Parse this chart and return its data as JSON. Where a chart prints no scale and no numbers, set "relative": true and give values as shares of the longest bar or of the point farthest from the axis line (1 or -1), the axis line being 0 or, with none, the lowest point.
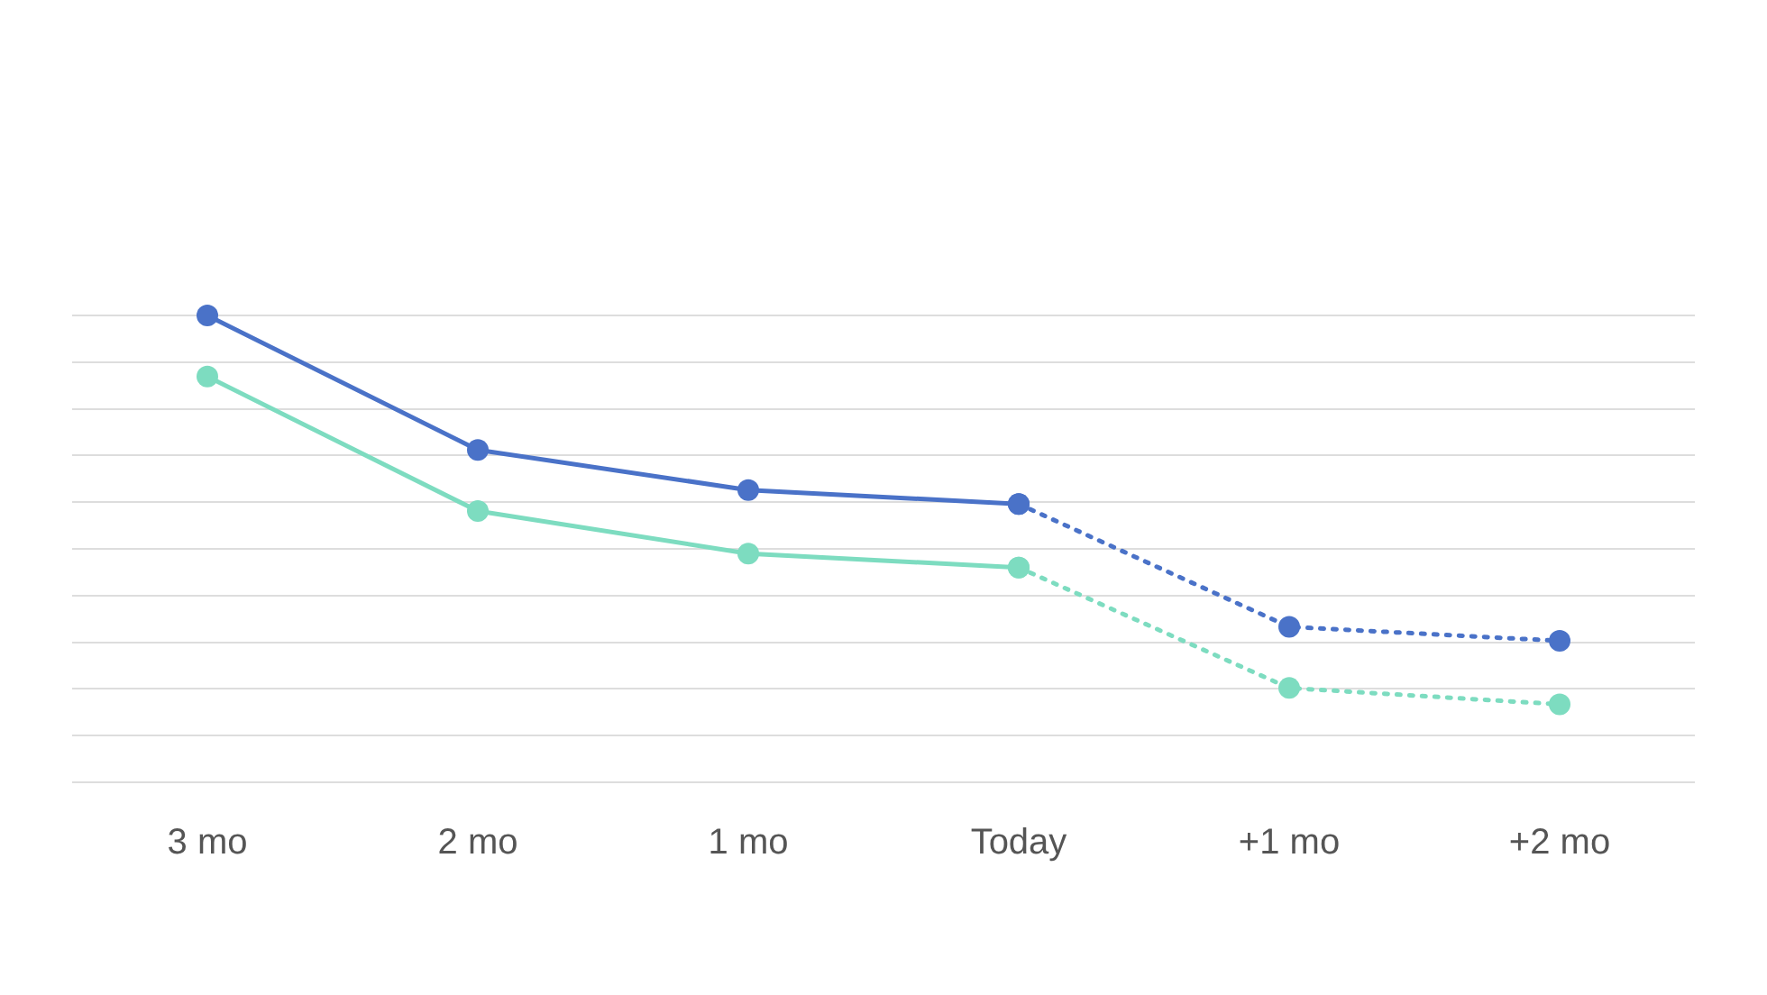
{
  "chart_data": {
    "type": "line",
    "relative": true,
    "categories": [
      "3 mo",
      "2 mo",
      "1 mo",
      "Today",
      "+1 mo",
      "+2 mo"
    ],
    "series": [
      {
        "color": "#4a72c8",
        "line_style": "solid",
        "values": [
          1,
          0.712,
          0.626,
          0.596,
          null,
          null
        ]
      },
      {
        "color": "#7ddcc0",
        "line_style": "solid",
        "values": [
          0.869,
          0.581,
          0.49,
          0.46,
          null,
          null
        ]
      },
      {
        "color": "#4a72c8",
        "line_style": "dotted",
        "values": [
          null,
          null,
          null,
          0.596,
          0.333,
          0.303
        ]
      },
      {
        "color": "#7ddcc0",
        "line_style": "dotted",
        "values": [
          null,
          null,
          null,
          0.46,
          0.202,
          0.167
        ]
      }
    ],
    "marker": "circle",
    "grid": "y",
    "legend": false
  }
}
